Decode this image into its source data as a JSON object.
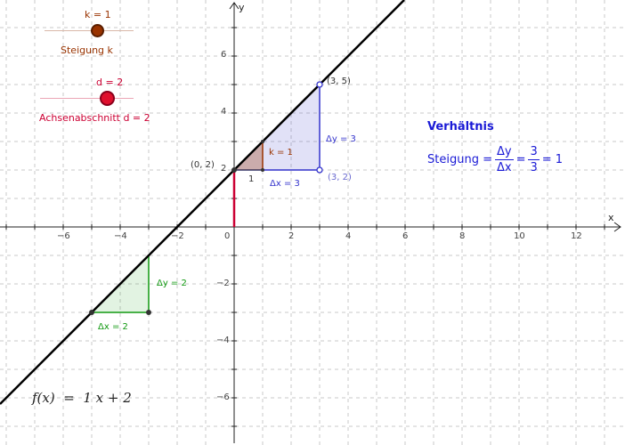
{
  "colors": {
    "function_line": "#000000",
    "slope_k": "#993300",
    "intercept_d": "#cc0033",
    "triangle_blue": "#3333cc",
    "triangle_green": "#119911",
    "grid": "#c8c8c8",
    "axis": "#222222",
    "formula": "#1a1ad6"
  },
  "slider_k": {
    "caption": "k = 1",
    "label": "Steigung k",
    "value": 1
  },
  "slider_d": {
    "caption": "d = 2",
    "label": "Achsenabschnitt d = 2",
    "value": 2
  },
  "axes": {
    "x_label": "x",
    "y_label": "y",
    "x_ticks": [
      "−6",
      "−4",
      "−2",
      "0",
      "2",
      "4",
      "6",
      "8",
      "10",
      "12"
    ],
    "y_ticks": [
      "6",
      "4",
      "2",
      "−2",
      "−4",
      "−6"
    ]
  },
  "points": {
    "origin_intercept": "(0, 2)",
    "upper": "(3, 5)",
    "corner": "(3, 2)"
  },
  "slope_triangle": {
    "k_label": "k = 1",
    "one_label": "1"
  },
  "blue_triangle": {
    "dy_label": "Δy = 3",
    "dx_label": "Δx = 3"
  },
  "green_triangle": {
    "dy_label": "Δy = 2",
    "dx_label": "Δx = 2"
  },
  "ratio": {
    "title": "Verhältnis",
    "prefix": "Steigung =",
    "num1": "Δy",
    "den1": "Δx",
    "eq1": "=",
    "num2": "3",
    "den2": "3",
    "eq2": "= 1"
  },
  "function_label": "f(x)  =  1 x + 2"
}
